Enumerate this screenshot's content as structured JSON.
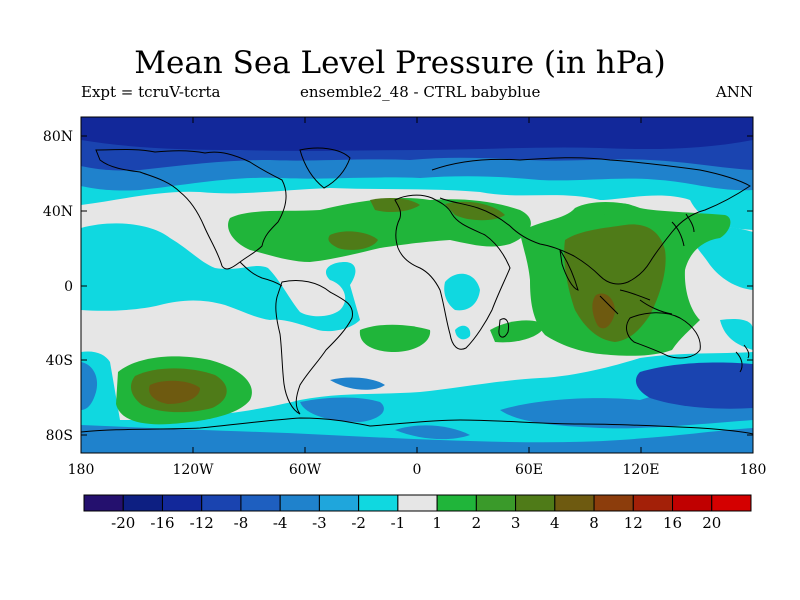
{
  "title": "Mean Sea Level Pressure (in hPa)",
  "subtitle_left": "Expt = tcruV-tcrta",
  "subtitle_center": "ensemble2_48 - CTRL babyblue",
  "subtitle_right": "ANN",
  "axes": {
    "lat_labels": [
      "80N",
      "40N",
      "0",
      "40S",
      "80S"
    ],
    "lon_labels": [
      "180",
      "120W",
      "60W",
      "0",
      "60E",
      "120E",
      "180"
    ]
  },
  "colorbar": {
    "labels": [
      "-20",
      "-16",
      "-12",
      "-8",
      "-4",
      "-3",
      "-2",
      "-1",
      "1",
      "2",
      "3",
      "4",
      "8",
      "12",
      "16",
      "20"
    ],
    "colors": [
      "#24106e",
      "#0d1f82",
      "#12289a",
      "#1a44b0",
      "#1e5fc0",
      "#1f82cc",
      "#1fa6dc",
      "#10d8e0",
      "#e6e6e6",
      "#20b53a",
      "#3a9a2a",
      "#4f7b18",
      "#6e5a10",
      "#8c3d0c",
      "#a32008",
      "#c00000",
      "#d40000"
    ]
  },
  "map_colors": {
    "background": "#e6e6e6",
    "dark_blue": "#12289a",
    "mid_blue": "#1a44b0",
    "light_blue": "#1f82cc",
    "cyan": "#10d8e0",
    "green": "#20b53a",
    "olive": "#4f7b18",
    "brown": "#6e5a10"
  }
}
